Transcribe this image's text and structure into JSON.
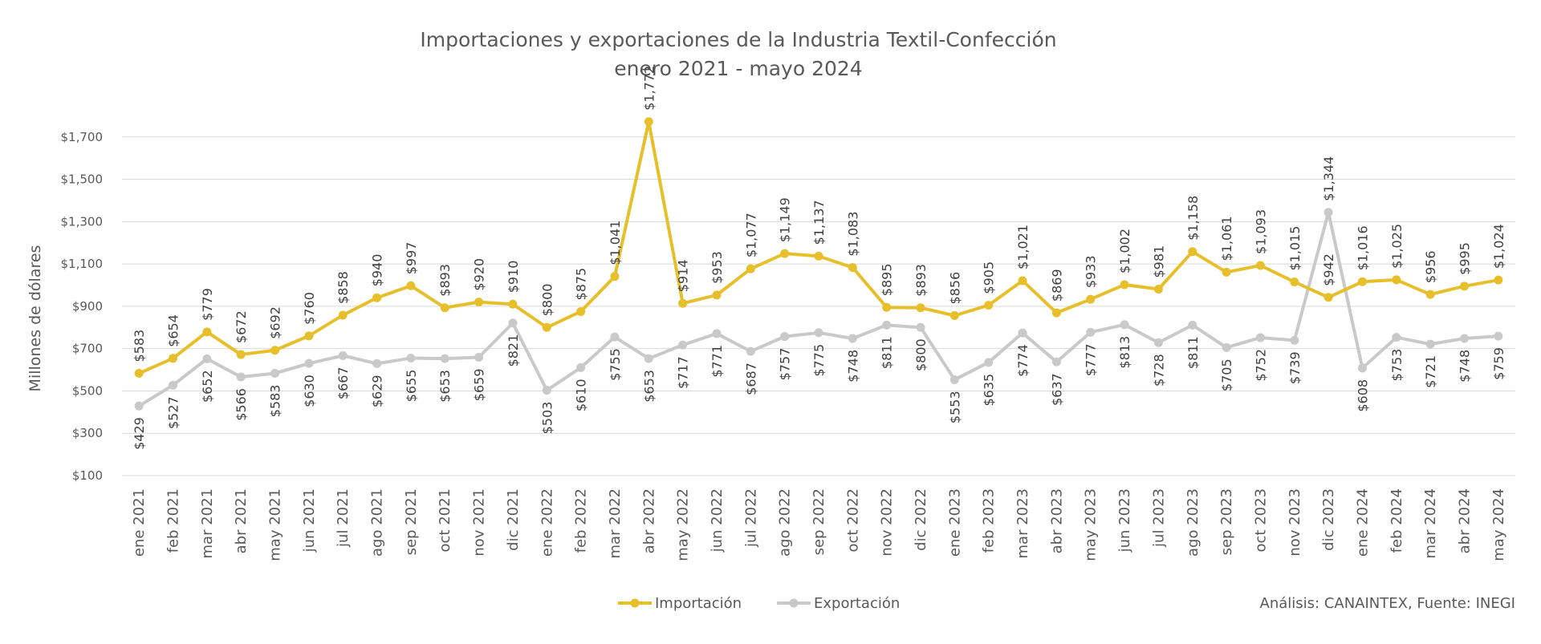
{
  "chart_data": {
    "type": "line",
    "title": "Importaciones y exportaciones de la Industria Textil-Confección",
    "subtitle": "enero 2021  - mayo 2024",
    "ylabel": "Millones de dólares",
    "ylim": [
      100,
      1900
    ],
    "yticks": [
      100,
      300,
      500,
      700,
      900,
      1100,
      1300,
      1500,
      1700
    ],
    "ytick_labels": [
      "$100",
      "$300",
      "$500",
      "$700",
      "$900",
      "$1,100",
      "$1,300",
      "$1,500",
      "$1,700"
    ],
    "grid": true,
    "legend_position": "bottom",
    "source": "Análisis: CANAINTEX, Fuente: INEGI",
    "categories": [
      "ene 2021",
      "feb 2021",
      "mar 2021",
      "abr 2021",
      "may 2021",
      "jun 2021",
      "jul 2021",
      "ago 2021",
      "sep 2021",
      "oct 2021",
      "nov 2021",
      "dic 2021",
      "ene 2022",
      "feb 2022",
      "mar 2022",
      "abr 2022",
      "may 2022",
      "jun 2022",
      "jul 2022",
      "ago 2022",
      "sep 2022",
      "oct 2022",
      "nov 2022",
      "dic 2022",
      "ene 2023",
      "feb 2023",
      "mar 2023",
      "abr 2023",
      "may 2023",
      "jun 2023",
      "jul 2023",
      "ago 2023",
      "sep 2023",
      "oct 2023",
      "nov 2023",
      "dic 2023",
      "ene 2024",
      "feb 2024",
      "mar 2024",
      "abr 2024",
      "may 2024"
    ],
    "series": [
      {
        "name": "Importación",
        "color": "#e6bf2a",
        "values": [
          583,
          654,
          779,
          672,
          692,
          760,
          858,
          940,
          997,
          893,
          920,
          910,
          800,
          875,
          1041,
          1772,
          914,
          953,
          1077,
          1149,
          1137,
          1083,
          895,
          893,
          856,
          905,
          1021,
          869,
          933,
          1002,
          981,
          1158,
          1061,
          1093,
          1015,
          942,
          1016,
          1025,
          956,
          995,
          1024
        ],
        "labels": [
          "$583",
          "$654",
          "$779",
          "$672",
          "$692",
          "$760",
          "$858",
          "$940",
          "$997",
          "$893",
          "$920",
          "$910",
          "$800",
          "$875",
          "$1,041",
          "$1,772",
          "$914",
          "$953",
          "$1,077",
          "$1,149",
          "$1,137",
          "$1,083",
          "$895",
          "$893",
          "$856",
          "$905",
          "$1,021",
          "$869",
          "$933",
          "$1,002",
          "$981",
          "$1,158",
          "$1,061",
          "$1,093",
          "$1,015",
          "$942",
          "$1,016",
          "$1,025",
          "$956",
          "$995",
          "$1,024"
        ]
      },
      {
        "name": "Exportación",
        "color": "#c9c9c9",
        "values": [
          429,
          527,
          652,
          566,
          583,
          630,
          667,
          629,
          655,
          653,
          659,
          821,
          503,
          610,
          755,
          653,
          717,
          771,
          687,
          757,
          775,
          748,
          811,
          800,
          553,
          635,
          774,
          637,
          777,
          813,
          728,
          811,
          705,
          752,
          739,
          1344,
          608,
          753,
          721,
          748,
          759
        ],
        "labels": [
          "$429",
          "$527",
          "$652",
          "$566",
          "$583",
          "$630",
          "$667",
          "$629",
          "$655",
          "$653",
          "$659",
          "$821",
          "$503",
          "$610",
          "$755",
          "$653",
          "$717",
          "$771",
          "$687",
          "$757",
          "$775",
          "$748",
          "$811",
          "$800",
          "$553",
          "$635",
          "$774",
          "$637",
          "$777",
          "$813",
          "$728",
          "$811",
          "$705",
          "$752",
          "$739",
          "$1,344",
          "$608",
          "$753",
          "$721",
          "$748",
          "$759"
        ]
      }
    ]
  }
}
